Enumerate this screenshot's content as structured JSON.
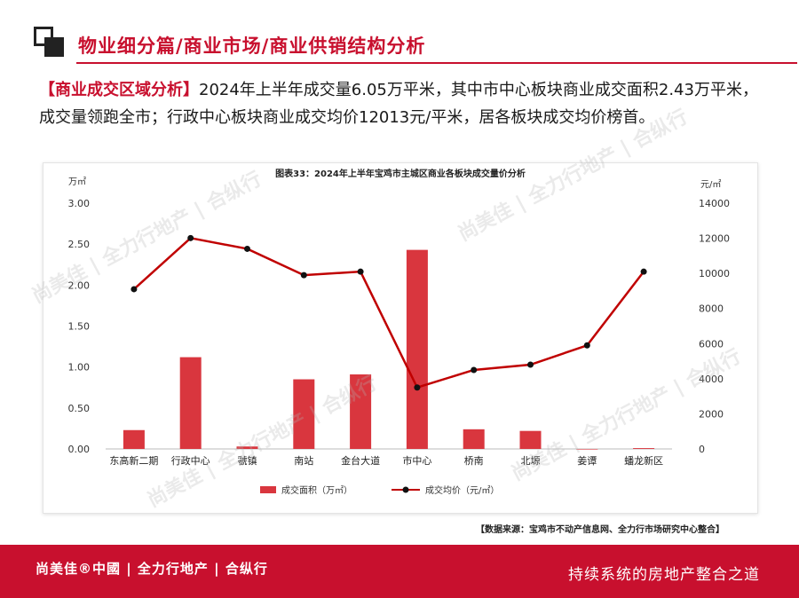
{
  "header": {
    "title": "物业细分篇/商业市场/商业供销结构分析"
  },
  "summary": {
    "tag": "【商业成交区域分析】",
    "text": "2024年上半年成交量6.05万平米，其中市中心板块商业成交面积2.43万平米，成交量领跑全市；行政中心板块商业成交均价12013元/平米，居各板块成交均价榜首。"
  },
  "chart_data": {
    "type": "bar",
    "title": "图表33：2024年上半年宝鸡市主城区商业各板块成交量价分析",
    "categories": [
      "东高新二期",
      "行政中心",
      "虢镇",
      "南站",
      "金台大道",
      "市中心",
      "桥南",
      "北塬",
      "姜谭",
      "蟠龙新区"
    ],
    "series": [
      {
        "name": "成交面积（万㎡）",
        "type": "bar",
        "axis": "left",
        "color": "#d9363e",
        "values": [
          0.23,
          1.12,
          0.03,
          0.85,
          0.91,
          2.43,
          0.24,
          0.22,
          0.0,
          0.01
        ]
      },
      {
        "name": "成交均价（元/㎡）",
        "type": "line",
        "axis": "right",
        "color": "#c00000",
        "values": [
          9100,
          12013,
          11400,
          9900,
          10100,
          3500,
          4500,
          4800,
          5900,
          10100
        ]
      }
    ],
    "y_left": {
      "label": "万㎡",
      "min": 0,
      "max": 3,
      "ticks": [
        "0.00",
        "0.50",
        "1.00",
        "1.50",
        "2.00",
        "2.50",
        "3.00"
      ]
    },
    "y_right": {
      "label": "元/㎡",
      "min": 0,
      "max": 14000,
      "ticks": [
        "0",
        "2000",
        "4000",
        "6000",
        "8000",
        "10000",
        "12000",
        "14000"
      ]
    },
    "grid": false,
    "legend": "bottom"
  },
  "source": "【数据来源：宝鸡市不动产信息网、全力行市场研究中心整合】",
  "footer": {
    "brand": "尚美佳®中國 | 全力行地产 | 合纵行",
    "slogan": "持续系统的房地产整合之道"
  }
}
